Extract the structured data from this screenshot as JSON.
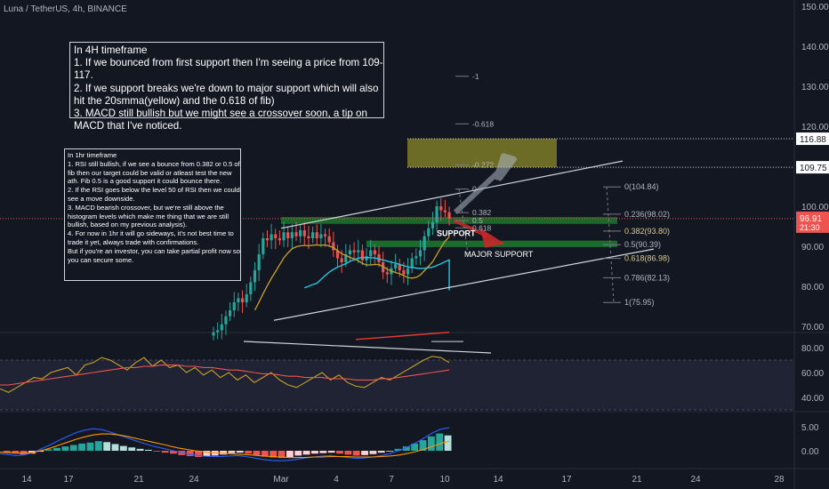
{
  "symbol_title": "Luna / TetherUS, 4h, BINANCE",
  "notes": {
    "h4": "In 4H timeframe\n1. If we bounced from first support then I'm seeing a price from 109-117.\n2. If we support breaks we're down to major support which will also hit the 20smma(yellow) and the 0.618 of fib)\n3. MACD still bullish but we might see a crossover soon, a tip on MACD that I've noticed.",
    "h1": "In 1hr timeframe\n1. RSI still bullish, if we see a bounce from 0.382 or 0.5 of fib then our target could be valid or atleast test the new ath. Fib 0.5 is a good support it could bounce there.\n2. If the RSI goes below the level 50 of RSI then we could see a move downside.\n3. MACD bearish crossover, but we're still above the histogram levels which make me thing that we are still bullish, based on my previous analysis).\n4. For now in 1hr it will go sideways, it's not best time to trade it yet, always trade with confirmations.\nBut if you're an investor, you can take partial profit now so you can secure some."
  },
  "colors": {
    "background": "#131722",
    "up": "#26a69a",
    "down": "#ef5350",
    "sma_yellow": "#c9a227",
    "rsi_line": "#c9a227",
    "rsi_ma": "#ef5350",
    "fib_line": "#787b86",
    "support_zone": "#1e7a2e",
    "target_zone": "#8b8a2a",
    "last_price_tag": "#ef5350",
    "level_tag": "#ffffff"
  },
  "chart_data": [
    {
      "type": "candlestick",
      "pane": "price",
      "ylim": [
        65,
        150
      ],
      "y_ticks": [
        "70.00",
        "80.00",
        "90.00",
        "100.00",
        "110.00",
        "120.00",
        "130.00",
        "140.00",
        "150.00"
      ],
      "x_ticks": [
        "14",
        "17",
        "21",
        "24",
        "Mar",
        "4",
        "7",
        "10",
        "14",
        "17",
        "21",
        "24",
        "28"
      ],
      "last_price": "96.91",
      "countdown": "21:30",
      "level_tags": [
        "116.88",
        "109.75"
      ],
      "close_path": [
        68.5,
        69,
        70.5,
        72.5,
        74,
        76,
        77,
        76,
        78,
        81,
        84,
        88,
        92,
        91.5,
        93,
        92,
        91.5,
        93.5,
        92,
        93.5,
        92.5,
        94,
        92.5,
        92,
        93.5,
        92,
        93,
        92.5,
        91,
        89,
        87,
        86,
        88,
        89,
        88.5,
        89,
        86.5,
        87.5,
        89,
        88,
        86,
        83.5,
        83,
        84.5,
        85.5,
        84,
        83,
        84.5,
        87,
        87.5,
        89,
        92.5,
        94.5,
        96,
        100,
        99,
        98.5,
        96.91
      ],
      "fib_retracement": [
        {
          "label": "-1",
          "price": 132.5
        },
        {
          "label": "-0.618",
          "price": 120.6
        },
        {
          "label": "-0.272",
          "price": 110.3
        },
        {
          "label": "0",
          "price": 104.3
        },
        {
          "label": "0.382",
          "price": 98.4
        },
        {
          "label": "0.5",
          "price": 96.4
        },
        {
          "label": "0.618",
          "price": 94.6
        }
      ],
      "fib_extension": [
        {
          "label": "0(104.84)",
          "price": 104.84
        },
        {
          "label": "0.236(98.02)",
          "price": 98.02
        },
        {
          "label": "0.382(93.80)",
          "price": 93.8
        },
        {
          "label": "0.5(90.39)",
          "price": 90.39
        },
        {
          "label": "0.618(86.98)",
          "price": 86.98
        },
        {
          "label": "0.786(82.13)",
          "price": 82.13
        },
        {
          "label": "1(75.95)",
          "price": 75.95
        }
      ],
      "annotations": [
        "SUPPORT",
        "MAJOR SUPPORT"
      ],
      "zones": {
        "target": [
          109.75,
          116.88
        ],
        "support": [
          95.6,
          97.3
        ],
        "major_support": [
          89.8,
          91.4
        ]
      }
    },
    {
      "type": "line",
      "pane": "rsi",
      "y_ticks": [
        "80.00",
        "60.00",
        "40.00"
      ],
      "series": [
        {
          "values": [
            47,
            44,
            48,
            52,
            56,
            55,
            60,
            62,
            64,
            58,
            66,
            68,
            72,
            70,
            66,
            62,
            68,
            72,
            65,
            70,
            64,
            66,
            60,
            64,
            58,
            62,
            56,
            60,
            54,
            58,
            52,
            56,
            60,
            54,
            50,
            48,
            52,
            56,
            60,
            54,
            58,
            52,
            49,
            48,
            52,
            56,
            54,
            58,
            62,
            66,
            70,
            73,
            72,
            68
          ]
        },
        {
          "values": [
            50,
            50,
            51,
            52,
            53,
            54,
            55,
            56,
            57,
            58,
            59,
            60,
            61,
            62,
            63,
            64,
            64,
            65,
            65,
            66,
            66,
            66,
            65,
            65,
            64,
            64,
            63,
            62,
            62,
            61,
            60,
            59,
            59,
            58,
            57,
            57,
            56,
            56,
            56,
            55,
            55,
            55,
            54,
            54,
            54,
            55,
            55,
            56,
            57,
            58,
            59,
            60,
            61,
            62
          ]
        }
      ]
    },
    {
      "type": "bar",
      "pane": "macd",
      "y_ticks": [
        "5.00",
        "0.00"
      ],
      "histogram": [
        -0.3,
        -0.5,
        -0.8,
        -0.6,
        -0.2,
        0.3,
        0.6,
        0.9,
        1.2,
        1.5,
        1.7,
        2.0,
        1.8,
        1.4,
        1.0,
        0.7,
        0.4,
        0.2,
        -0.1,
        -0.4,
        -0.6,
        -0.9,
        -1.1,
        -1.3,
        -1.2,
        -1.0,
        -0.8,
        -0.5,
        -0.4,
        -0.6,
        -0.9,
        -1.2,
        -1.4,
        -1.5,
        -1.3,
        -1.0,
        -0.8,
        -0.6,
        -0.5,
        -0.4,
        -0.6,
        -0.8,
        -1.0,
        -0.9,
        -0.7,
        -0.4,
        -0.1,
        0.4,
        0.9,
        1.5,
        2.2,
        3.0,
        3.6,
        3.2
      ],
      "series": [
        {
          "values": [
            -0.6,
            -0.8,
            -1.0,
            -0.8,
            -0.3,
            0.5,
            1.3,
            2.2,
            3.0,
            3.8,
            4.3,
            4.6,
            4.4,
            3.9,
            3.3,
            2.7,
            2.1,
            1.5,
            1.0,
            0.6,
            0.2,
            -0.2,
            -0.6,
            -0.9,
            -1.1,
            -1.2,
            -1.2,
            -1.1,
            -1.0,
            -1.2,
            -1.5,
            -1.8,
            -2.0,
            -2.1,
            -2.0,
            -1.8,
            -1.5,
            -1.3,
            -1.1,
            -1.0,
            -1.2,
            -1.4,
            -1.6,
            -1.5,
            -1.3,
            -1.0,
            -0.6,
            0.0,
            0.7,
            1.6,
            2.6,
            3.7,
            4.5,
            4.8
          ]
        },
        {
          "values": [
            -0.3,
            -0.4,
            -0.5,
            -0.5,
            -0.3,
            0.1,
            0.6,
            1.2,
            1.8,
            2.4,
            2.9,
            3.3,
            3.5,
            3.5,
            3.3,
            3.0,
            2.6,
            2.2,
            1.8,
            1.4,
            1.0,
            0.6,
            0.3,
            0.0,
            -0.2,
            -0.4,
            -0.5,
            -0.6,
            -0.7,
            -0.8,
            -0.9,
            -1.1,
            -1.2,
            -1.3,
            -1.4,
            -1.4,
            -1.4,
            -1.3,
            -1.3,
            -1.2,
            -1.2,
            -1.2,
            -1.3,
            -1.3,
            -1.3,
            -1.2,
            -1.1,
            -0.9,
            -0.6,
            -0.2,
            0.3,
            0.9,
            1.5,
            2.0
          ]
        }
      ]
    }
  ]
}
